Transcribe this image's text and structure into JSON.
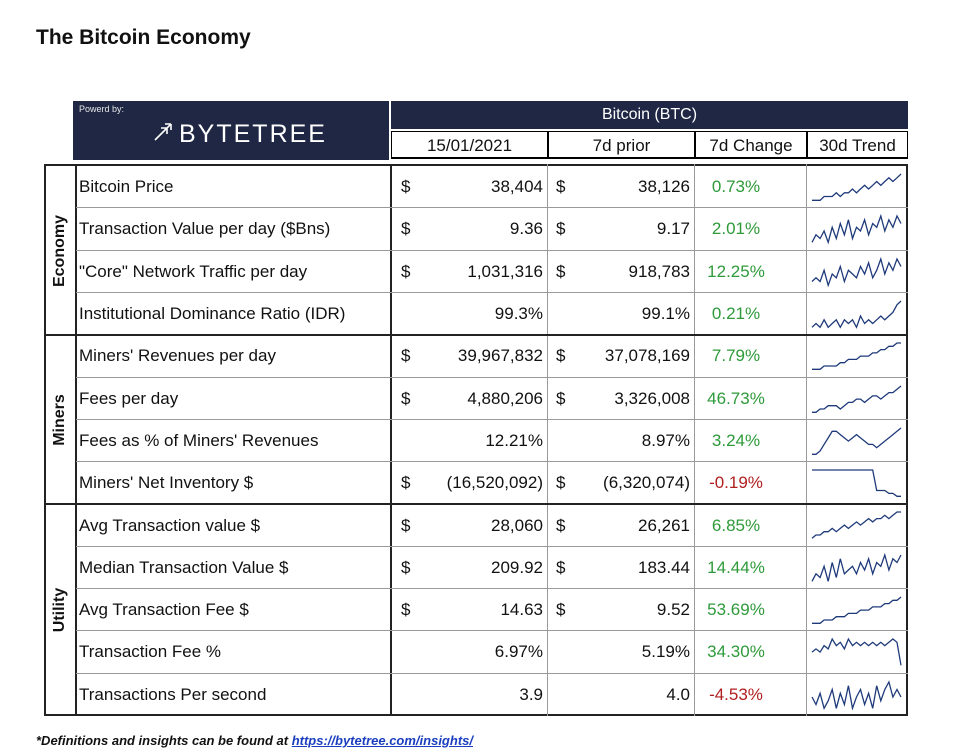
{
  "page_title": "The Bitcoin Economy",
  "logo": {
    "powered_by": "Powerd by:",
    "brand": "BYTETREE"
  },
  "header": {
    "asset": "Bitcoin (BTC)",
    "columns": [
      "15/01/2021",
      "7d prior",
      "7d Change",
      "30d Trend"
    ]
  },
  "groups": [
    {
      "name": "Economy",
      "rows": [
        0,
        1,
        2,
        3
      ]
    },
    {
      "name": "Miners",
      "rows": [
        4,
        5,
        6,
        7
      ]
    },
    {
      "name": "Utility",
      "rows": [
        8,
        9,
        10,
        11,
        12
      ]
    }
  ],
  "rows": [
    {
      "label": "Bitcoin Price",
      "cur_sym": "$",
      "current": "38,404",
      "prior_sym": "$",
      "prior": "38,126",
      "change": "0.73%",
      "direction": "up",
      "trend": [
        3,
        3,
        3,
        4,
        4,
        4,
        5,
        4,
        5,
        5,
        6,
        5,
        6,
        7,
        6,
        7,
        8,
        7,
        8,
        9,
        8,
        9,
        10
      ]
    },
    {
      "label": "Transaction Value per day ($Bns)",
      "cur_sym": "$",
      "current": "9.36",
      "prior_sym": "$",
      "prior": "9.17",
      "change": "2.01%",
      "direction": "up",
      "trend": [
        2,
        4,
        3,
        5,
        2,
        6,
        3,
        7,
        4,
        8,
        3,
        6,
        5,
        8,
        4,
        7,
        6,
        9,
        5,
        8,
        6,
        9,
        7
      ]
    },
    {
      "label": "\"Core\" Network Traffic per day",
      "cur_sym": "$",
      "current": "1,031,316",
      "prior_sym": "$",
      "prior": "918,783",
      "change": "12.25%",
      "direction": "up",
      "trend": [
        3,
        4,
        3,
        6,
        2,
        5,
        4,
        7,
        3,
        6,
        5,
        4,
        7,
        5,
        8,
        4,
        6,
        9,
        5,
        8,
        6,
        9,
        7
      ]
    },
    {
      "label": "Institutional Dominance Ratio (IDR)",
      "cur_sym": "",
      "current": "99.3%",
      "prior_sym": "",
      "prior": "99.1%",
      "change": "0.21%",
      "direction": "up",
      "trend": [
        3,
        4,
        3,
        5,
        3,
        4,
        5,
        3,
        5,
        4,
        5,
        3,
        6,
        4,
        5,
        4,
        5,
        6,
        5,
        6,
        7,
        9,
        10
      ]
    },
    {
      "label": "Miners' Revenues per day",
      "cur_sym": "$",
      "current": "39,967,832",
      "prior_sym": "$",
      "prior": "37,078,169",
      "change": "7.79%",
      "direction": "up",
      "trend": [
        2,
        2,
        2,
        3,
        3,
        3,
        3,
        4,
        4,
        5,
        5,
        5,
        6,
        6,
        6,
        7,
        7,
        8,
        8,
        9,
        9,
        10,
        10
      ]
    },
    {
      "label": "Fees per day",
      "cur_sym": "$",
      "current": "4,880,206",
      "prior_sym": "$",
      "prior": "3,326,008",
      "change": "46.73%",
      "direction": "up",
      "trend": [
        2,
        2,
        3,
        3,
        4,
        4,
        4,
        3,
        4,
        5,
        5,
        6,
        6,
        5,
        6,
        7,
        7,
        6,
        7,
        8,
        8,
        9,
        10
      ]
    },
    {
      "label": "Fees as % of Miners' Revenues",
      "cur_sym": "",
      "current": "12.21%",
      "prior_sym": "",
      "prior": "8.97%",
      "change": "3.24%",
      "direction": "up",
      "trend": [
        2,
        2,
        3,
        5,
        7,
        9,
        9,
        8,
        7,
        6,
        7,
        8,
        7,
        6,
        5,
        5,
        4,
        5,
        6,
        7,
        8,
        9,
        10
      ]
    },
    {
      "label": "Miners' Net Inventory $",
      "cur_sym": "$",
      "current": "(16,520,092)",
      "prior_sym": "$",
      "prior": "(6,320,074)",
      "change": "-0.19%",
      "direction": "down",
      "trend": [
        10,
        10,
        10,
        10,
        10,
        10,
        10,
        10,
        10,
        10,
        10,
        10,
        10,
        10,
        10,
        10,
        3,
        3,
        3,
        2,
        2,
        1,
        1
      ]
    },
    {
      "label": "Avg Transaction value $",
      "cur_sym": "$",
      "current": "28,060",
      "prior_sym": "$",
      "prior": "26,261",
      "change": "6.85%",
      "direction": "up",
      "trend": [
        2,
        3,
        3,
        4,
        4,
        5,
        4,
        5,
        6,
        5,
        6,
        7,
        6,
        7,
        8,
        7,
        8,
        8,
        9,
        8,
        9,
        10,
        10
      ]
    },
    {
      "label": "Median Transaction Value $",
      "cur_sym": "$",
      "current": "209.92",
      "prior_sym": "$",
      "prior": "183.44",
      "change": "14.44%",
      "direction": "up",
      "trend": [
        3,
        5,
        4,
        7,
        3,
        8,
        4,
        9,
        5,
        6,
        7,
        5,
        8,
        6,
        9,
        5,
        8,
        7,
        10,
        6,
        9,
        8,
        10
      ]
    },
    {
      "label": "Avg Transaction Fee $",
      "cur_sym": "$",
      "current": "14.63",
      "prior_sym": "$",
      "prior": "9.52",
      "change": "53.69%",
      "direction": "up",
      "trend": [
        2,
        2,
        2,
        3,
        3,
        3,
        4,
        4,
        4,
        5,
        5,
        5,
        6,
        6,
        6,
        7,
        7,
        7,
        8,
        8,
        9,
        9,
        10
      ]
    },
    {
      "label": "Transaction Fee %",
      "cur_sym": "",
      "current": "6.97%",
      "prior_sym": "",
      "prior": "5.19%",
      "change": "34.30%",
      "direction": "up",
      "trend": [
        5,
        6,
        5,
        7,
        6,
        9,
        7,
        8,
        6,
        9,
        7,
        8,
        7,
        8,
        7,
        8,
        7,
        8,
        7,
        8,
        9,
        8,
        1
      ]
    },
    {
      "label": "Transactions Per second",
      "cur_sym": "",
      "current": "3.9",
      "prior_sym": "",
      "prior": "4.0",
      "change": "-4.53%",
      "direction": "down",
      "trend": [
        6,
        4,
        7,
        3,
        5,
        8,
        3,
        7,
        4,
        9,
        3,
        6,
        8,
        4,
        7,
        3,
        9,
        5,
        8,
        10,
        6,
        8,
        6
      ]
    }
  ],
  "footnote": {
    "prefix": "*Definitions and insights can be found at ",
    "link": "https://bytetree.com/insights/"
  },
  "colors": {
    "navy": "#1f2744",
    "positive": "#2e9a3a",
    "negative": "#b02020",
    "spark": "#1f3a7a"
  }
}
